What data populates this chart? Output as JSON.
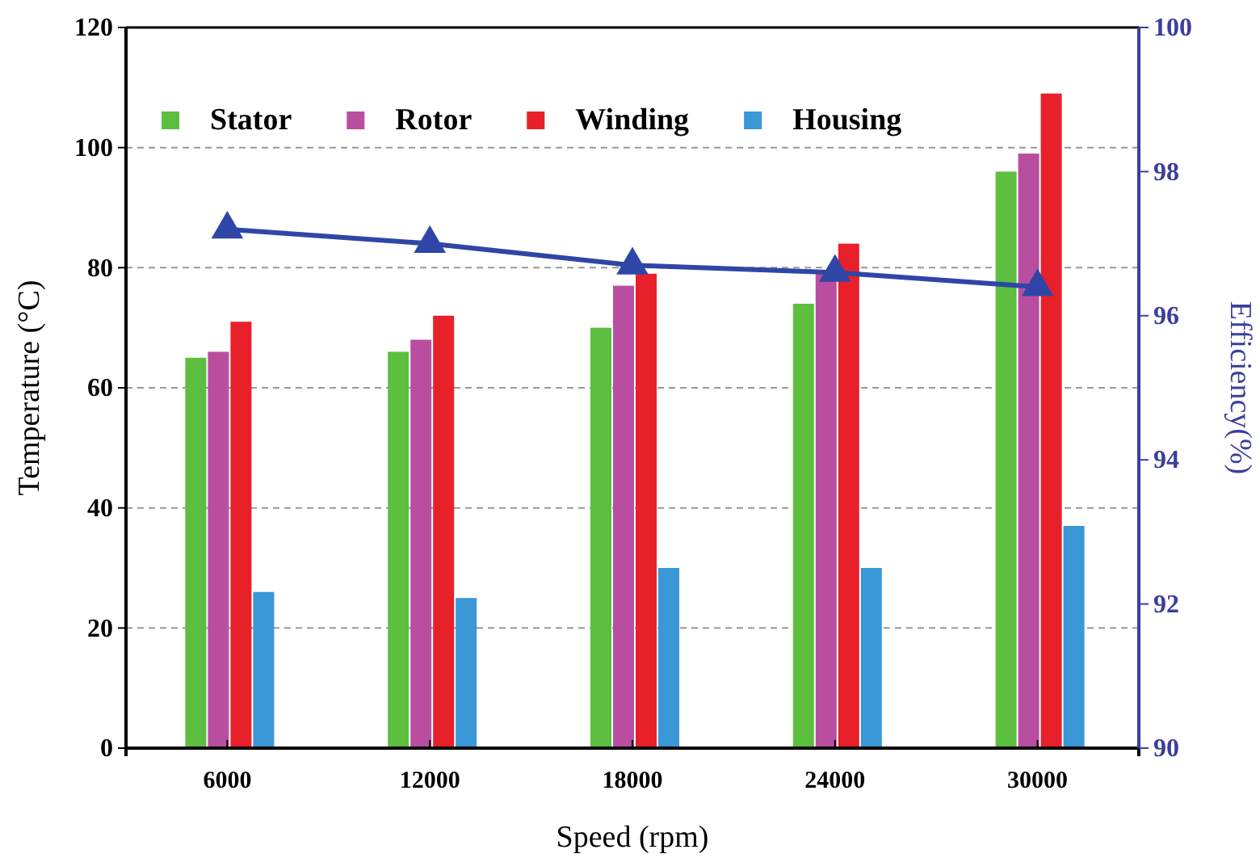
{
  "chart_data": {
    "type": "bar",
    "xlabel": "Speed (rpm)",
    "ylabel": "Temperature (°C)",
    "y2label": "Efficiency(%)",
    "categories": [
      "6000",
      "12000",
      "18000",
      "24000",
      "30000"
    ],
    "series": [
      {
        "name": "Stator",
        "color": "#5cbf3f",
        "values": [
          65,
          66,
          70,
          74,
          96
        ]
      },
      {
        "name": "Rotor",
        "color": "#b94ea0",
        "values": [
          66,
          68,
          77,
          79,
          99
        ]
      },
      {
        "name": "Winding",
        "color": "#e8202a",
        "values": [
          71,
          72,
          79,
          84,
          109
        ]
      },
      {
        "name": "Housing",
        "color": "#3a98d6",
        "values": [
          26,
          25,
          30,
          30,
          37
        ]
      },
      {
        "type": "line",
        "axis": "y2",
        "color": "#2f46a6",
        "marker": "triangle",
        "values": [
          97.2,
          97.0,
          96.7,
          96.6,
          96.4
        ]
      }
    ],
    "ylim": [
      0,
      120
    ],
    "yticks": [
      0,
      20,
      40,
      60,
      80,
      100,
      120
    ],
    "y2lim": [
      90,
      100
    ],
    "y2ticks": [
      90,
      92,
      94,
      96,
      98,
      100
    ],
    "grid": "y",
    "legend": "top"
  }
}
